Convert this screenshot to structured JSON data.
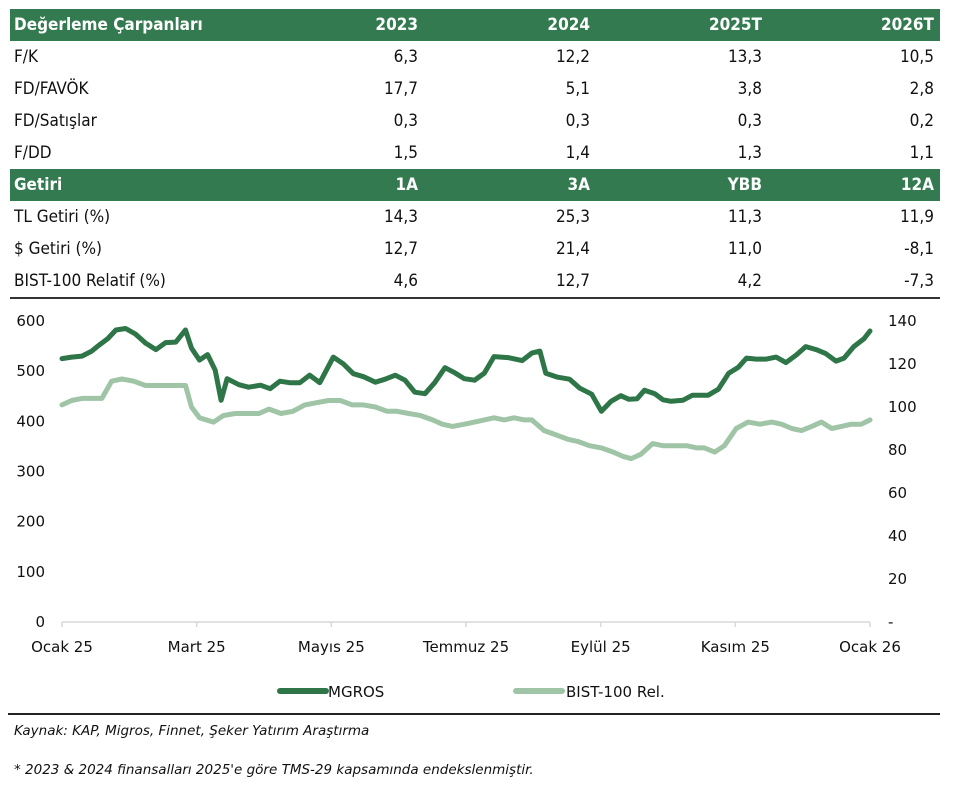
{
  "valuation_table": {
    "header": [
      "Değerleme Çarpanları",
      "2023",
      "2024",
      "2025T",
      "2026T"
    ],
    "rows": [
      {
        "label": "F/K",
        "values": [
          "6,3",
          "12,2",
          "13,3",
          "10,5"
        ]
      },
      {
        "label": "FD/FAVÖK",
        "values": [
          "17,7",
          "5,1",
          "3,8",
          "2,8"
        ]
      },
      {
        "label": "FD/Satışlar",
        "values": [
          "0,3",
          "0,3",
          "0,3",
          "0,2"
        ]
      },
      {
        "label": "F/DD",
        "values": [
          "1,5",
          "1,4",
          "1,3",
          "1,1"
        ]
      }
    ]
  },
  "returns_table": {
    "header": [
      "Getiri",
      "1A",
      "3A",
      "YBB",
      "12A"
    ],
    "rows": [
      {
        "label": "TL Getiri (%)",
        "values": [
          "14,3",
          "25,3",
          "11,3",
          "11,9"
        ]
      },
      {
        "label": "$ Getiri (%)",
        "values": [
          "12,7",
          "21,4",
          "11,0",
          "-8,1"
        ]
      },
      {
        "label": "BIST-100 Relatif (%)",
        "values": [
          "4,6",
          "12,7",
          "4,2",
          "-7,3"
        ]
      }
    ]
  },
  "colors": {
    "header_bg": "#347a50",
    "mgros": "#2e7548",
    "bist_rel": "#9fc4a6"
  },
  "chart_data": {
    "type": "line",
    "title": "",
    "x_ticks": [
      "Ocak 25",
      "Mart 25",
      "Mayıs 25",
      "Temmuz 25",
      "Eylül 25",
      "Kasım 25",
      "Ocak 26"
    ],
    "x_range_months": [
      0,
      12
    ],
    "y_left": {
      "ticks": [
        "0",
        "100",
        "200",
        "300",
        "400",
        "500",
        "600"
      ],
      "range": [
        0,
        600
      ]
    },
    "y_right": {
      "ticks": [
        "-",
        "20",
        "40",
        "60",
        "80",
        "100",
        "120",
        "140"
      ],
      "range": [
        0,
        140
      ]
    },
    "grid": false,
    "legend_position": "bottom",
    "series": [
      {
        "name": "MGROS",
        "axis": "left",
        "x_months": [
          0,
          0.18,
          0.37,
          0.55,
          0.7,
          0.85,
          1.0,
          1.18,
          1.36,
          1.55,
          1.74,
          1.92,
          2.11,
          2.29,
          2.4,
          2.55,
          2.7,
          2.84,
          2.95,
          3.06,
          3.28,
          3.46,
          3.68,
          3.86,
          4.04,
          4.22,
          4.41,
          4.59,
          4.78,
          5.03,
          5.22,
          5.4,
          5.59,
          5.81,
          5.99,
          6.18,
          6.36,
          6.54,
          6.73,
          6.91,
          7.1,
          7.28,
          7.46,
          7.65,
          7.83,
          8.01,
          8.27,
          8.53,
          8.71,
          8.86,
          8.97,
          9.19,
          9.41,
          9.6,
          9.82,
          10.0,
          10.18,
          10.36,
          10.51,
          10.66,
          10.8,
          10.99,
          11.14,
          11.29,
          11.51,
          11.69,
          11.84,
          11.98,
          12.17,
          12.36,
          12.54,
          12.69,
          12.87,
          13.06,
          13.24,
          13.42,
          13.61,
          13.79,
          13.98,
          14.16,
          14.35,
          14.5,
          14.68,
          14.87,
          14.98
        ],
        "values": [
          525,
          528,
          530,
          540,
          553,
          565,
          582,
          585,
          574,
          556,
          543,
          557,
          558,
          582,
          546,
          522,
          533,
          502,
          442,
          485,
          473,
          468,
          472,
          465,
          480,
          477,
          477,
          492,
          477,
          528,
          514,
          495,
          489,
          478,
          484,
          492,
          482,
          458,
          455,
          477,
          507,
          497,
          485,
          482,
          496,
          529,
          527,
          521,
          536,
          540,
          496,
          488,
          484,
          466,
          454,
          420,
          440,
          451,
          444,
          445,
          462,
          455,
          443,
          440,
          442,
          452,
          452,
          452,
          464,
          496,
          508,
          526,
          524,
          524,
          528,
          517,
          532,
          549,
          543,
          535,
          520,
          526,
          549,
          565,
          580
        ]
      },
      {
        "name": "BIST-100 Rel.",
        "axis": "right",
        "x_months": [
          0,
          0.18,
          0.37,
          0.55,
          0.74,
          0.92,
          1.11,
          1.33,
          1.55,
          1.74,
          1.96,
          2.29,
          2.4,
          2.55,
          2.81,
          2.99,
          3.21,
          3.43,
          3.65,
          3.84,
          4.06,
          4.28,
          4.5,
          4.72,
          4.94,
          5.16,
          5.38,
          5.59,
          5.81,
          6.03,
          6.21,
          6.43,
          6.65,
          6.87,
          7.05,
          7.24,
          7.46,
          7.65,
          7.83,
          8.01,
          8.2,
          8.38,
          8.57,
          8.71,
          8.94,
          9.16,
          9.38,
          9.56,
          9.78,
          10.0,
          10.22,
          10.4,
          10.55,
          10.73,
          10.95,
          11.14,
          11.36,
          11.58,
          11.77,
          11.91,
          12.1,
          12.28,
          12.5,
          12.72,
          12.94,
          13.16,
          13.34,
          13.53,
          13.71,
          13.9,
          14.08,
          14.27,
          14.45,
          14.63,
          14.82,
          14.98
        ],
        "values": [
          101,
          103,
          104,
          104,
          104,
          112,
          113,
          112,
          110,
          110,
          110,
          110,
          100,
          95,
          93,
          96,
          97,
          97,
          97,
          99,
          97,
          98,
          101,
          102,
          103,
          103,
          101,
          101,
          100,
          98,
          98,
          97,
          96,
          94,
          92,
          91,
          92,
          93,
          94,
          95,
          94,
          95,
          94,
          94,
          89,
          87,
          85,
          84,
          82,
          81,
          79,
          77,
          76,
          78,
          83,
          82,
          82,
          82,
          81,
          81,
          79,
          82,
          90,
          93,
          92,
          93,
          92,
          90,
          89,
          91,
          93,
          90,
          91,
          92,
          92,
          94
        ]
      }
    ]
  },
  "footer": {
    "source": "Kaynak: KAP, Migros, Finnet, Şeker Yatırım Araştırma",
    "footnote": "* 2023 & 2024 finansalları 2025'e göre TMS-29 kapsamında endekslenmiştir."
  }
}
